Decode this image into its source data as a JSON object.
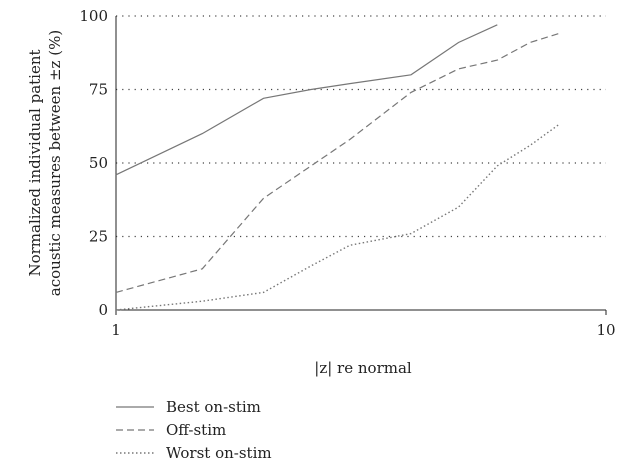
{
  "chart_data": {
    "type": "line",
    "x_scale": "log",
    "xlim": [
      1,
      10
    ],
    "ylim": [
      0,
      100
    ],
    "x_ticks": [
      {
        "value": 1,
        "label": "1"
      },
      {
        "value": 10,
        "label": "10"
      }
    ],
    "y_ticks": [
      {
        "value": 0,
        "label": "0"
      },
      {
        "value": 25,
        "label": "25"
      },
      {
        "value": 50,
        "label": "50"
      },
      {
        "value": 75,
        "label": "75"
      },
      {
        "value": 100,
        "label": "100"
      }
    ],
    "xlabel": "|z| re normal",
    "ylabel_line1": "Normalized individual patient",
    "ylabel_line2": "acoustic measures between ±z (%)",
    "grid": "horizontal dotted",
    "legend_position": "bottom-left",
    "series": [
      {
        "name": "Best on-stim",
        "style": "solid",
        "color": "#777777",
        "x": [
          1,
          1.5,
          2,
          2.5,
          3,
          4,
          5,
          6
        ],
        "y": [
          46,
          60,
          72,
          75,
          77,
          80,
          91,
          97
        ]
      },
      {
        "name": "Off-stim",
        "style": "dashed",
        "color": "#777777",
        "x": [
          1,
          1.5,
          2,
          3,
          4,
          5,
          6,
          7,
          8
        ],
        "y": [
          6,
          14,
          38,
          58,
          74,
          82,
          85,
          91,
          94
        ]
      },
      {
        "name": "Worst on-stim",
        "style": "dotted",
        "color": "#777777",
        "x": [
          1,
          1.5,
          2,
          2.5,
          3,
          4,
          5,
          6,
          7,
          8
        ],
        "y": [
          0,
          3,
          6,
          15,
          22,
          26,
          35,
          49,
          56,
          63
        ]
      }
    ]
  }
}
